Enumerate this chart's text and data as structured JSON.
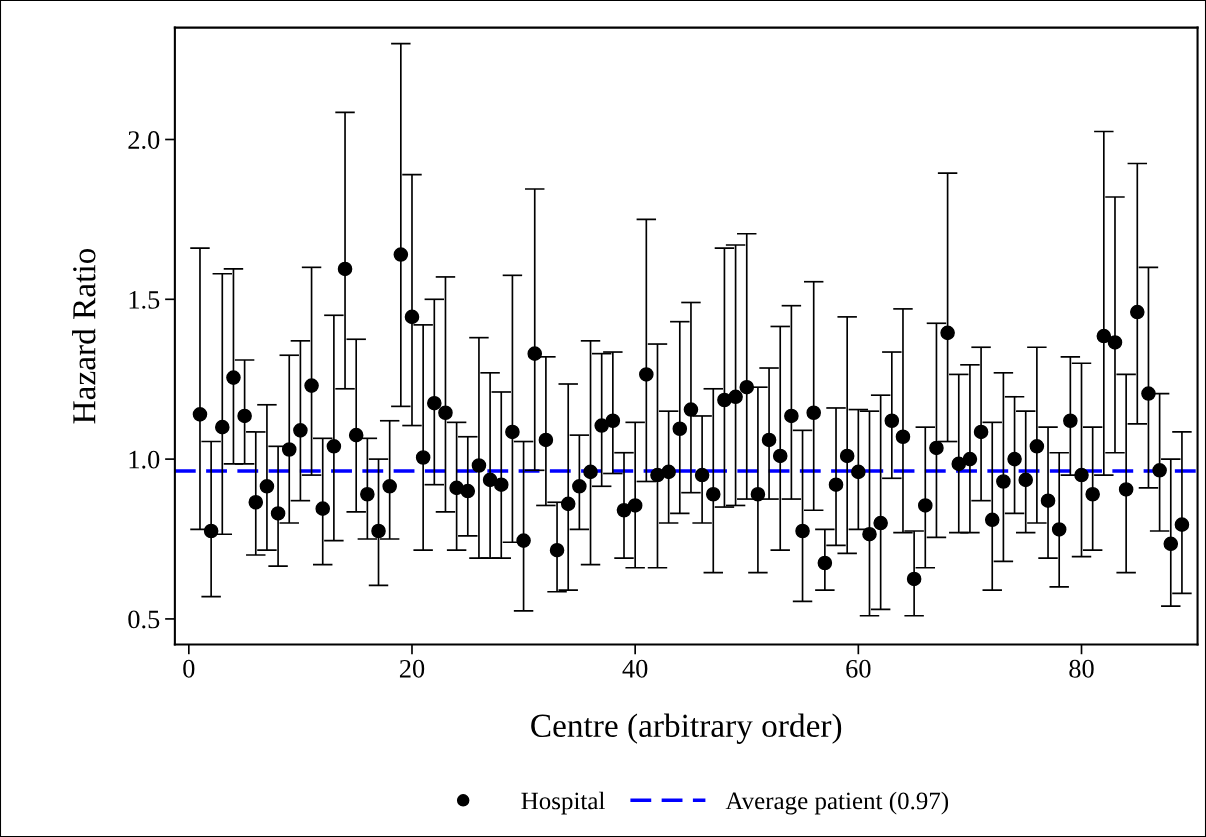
{
  "chart_data": {
    "type": "scatter",
    "xlabel": "Centre (arbitrary order)",
    "ylabel": "Hazard Ratio",
    "xlim": [
      -1.25,
      90.4
    ],
    "xticks": [
      0,
      20,
      40,
      60,
      80
    ],
    "ylim": [
      0.42,
      2.35
    ],
    "yticks": [
      {
        "value": 0.5,
        "label": "0.5"
      },
      {
        "value": 1.0,
        "label": "1.0"
      },
      {
        "value": 1.5,
        "label": "1.5"
      },
      {
        "value": 2.0,
        "label": "2.0"
      }
    ],
    "x": [
      1,
      2,
      3,
      4,
      5,
      6,
      7,
      8,
      9,
      10,
      11,
      12,
      13,
      14,
      15,
      16,
      17,
      18,
      19,
      20,
      21,
      22,
      23,
      24,
      25,
      26,
      27,
      28,
      29,
      30,
      31,
      32,
      33,
      34,
      35,
      36,
      37,
      38,
      39,
      40,
      41,
      42,
      43,
      44,
      45,
      46,
      47,
      48,
      49,
      50,
      51,
      52,
      53,
      54,
      55,
      56,
      57,
      58,
      59,
      60,
      61,
      62,
      63,
      64,
      65,
      66,
      67,
      68,
      69,
      70,
      71,
      72,
      73,
      74,
      75,
      76,
      77,
      78,
      79,
      80,
      81,
      82,
      83,
      84,
      85,
      86,
      87,
      88,
      89
    ],
    "series": [
      {
        "name": "Hospital",
        "color": "#000000",
        "values": [
          1.14,
          0.775,
          1.1,
          1.255,
          1.135,
          0.865,
          0.915,
          0.83,
          1.03,
          1.09,
          1.23,
          0.845,
          1.04,
          1.595,
          1.075,
          0.89,
          0.775,
          0.915,
          1.64,
          1.445,
          1.005,
          1.175,
          1.145,
          0.91,
          0.9,
          0.98,
          0.935,
          0.92,
          1.085,
          0.745,
          1.33,
          1.06,
          0.715,
          0.86,
          0.915,
          0.96,
          1.105,
          1.12,
          0.84,
          0.855,
          1.265,
          0.95,
          0.96,
          1.095,
          1.155,
          0.95,
          0.89,
          1.185,
          1.195,
          1.225,
          0.89,
          1.06,
          1.01,
          1.135,
          0.775,
          1.145,
          0.675,
          0.92,
          1.01,
          0.96,
          0.765,
          0.8,
          1.12,
          1.07,
          0.625,
          0.855,
          1.035,
          1.395,
          0.985,
          1.0,
          1.085,
          0.81,
          0.93,
          1.0,
          0.935,
          1.04,
          0.87,
          0.78,
          1.12,
          0.95,
          0.89,
          1.385,
          1.365,
          0.905,
          1.46,
          1.205,
          0.965,
          0.735,
          0.795
        ],
        "errors": [
          [
            0.78,
            1.66
          ],
          [
            0.57,
            1.055
          ],
          [
            0.765,
            1.58
          ],
          [
            0.985,
            1.595
          ],
          [
            0.985,
            1.31
          ],
          [
            0.7,
            1.085
          ],
          [
            0.715,
            1.17
          ],
          [
            0.665,
            1.04
          ],
          [
            0.8,
            1.325
          ],
          [
            0.87,
            1.37
          ],
          [
            0.95,
            1.6
          ],
          [
            0.67,
            1.065
          ],
          [
            0.745,
            1.45
          ],
          [
            1.22,
            2.085
          ],
          [
            0.835,
            1.375
          ],
          [
            0.75,
            1.065
          ],
          [
            0.605,
            1.0
          ],
          [
            0.75,
            1.12
          ],
          [
            1.165,
            2.3
          ],
          [
            1.105,
            1.89
          ],
          [
            0.715,
            1.42
          ],
          [
            0.92,
            1.5
          ],
          [
            0.835,
            1.57
          ],
          [
            0.715,
            1.115
          ],
          [
            0.76,
            1.07
          ],
          [
            0.69,
            1.38
          ],
          [
            0.69,
            1.27
          ],
          [
            0.69,
            1.21
          ],
          [
            0.74,
            1.575
          ],
          [
            0.525,
            1.055
          ],
          [
            0.965,
            1.845
          ],
          [
            0.855,
            1.32
          ],
          [
            0.585,
            0.865
          ],
          [
            0.59,
            1.235
          ],
          [
            0.78,
            1.075
          ],
          [
            0.67,
            1.37
          ],
          [
            0.915,
            1.33
          ],
          [
            0.955,
            1.335
          ],
          [
            0.69,
            1.02
          ],
          [
            0.66,
            1.115
          ],
          [
            0.93,
            1.75
          ],
          [
            0.66,
            1.36
          ],
          [
            0.8,
            1.15
          ],
          [
            0.83,
            1.43
          ],
          [
            0.895,
            1.49
          ],
          [
            0.8,
            1.135
          ],
          [
            0.645,
            1.22
          ],
          [
            0.85,
            1.66
          ],
          [
            0.855,
            1.67
          ],
          [
            0.875,
            1.705
          ],
          [
            0.645,
            1.225
          ],
          [
            0.875,
            1.285
          ],
          [
            0.715,
            1.415
          ],
          [
            0.875,
            1.48
          ],
          [
            0.555,
            1.09
          ],
          [
            0.84,
            1.555
          ],
          [
            0.59,
            0.78
          ],
          [
            0.73,
            1.16
          ],
          [
            0.705,
            1.445
          ],
          [
            0.78,
            1.155
          ],
          [
            0.51,
            1.15
          ],
          [
            0.53,
            1.2
          ],
          [
            0.94,
            1.335
          ],
          [
            0.77,
            1.47
          ],
          [
            0.51,
            0.775
          ],
          [
            0.66,
            1.1
          ],
          [
            0.755,
            1.425
          ],
          [
            1.055,
            1.895
          ],
          [
            0.77,
            1.265
          ],
          [
            0.77,
            1.295
          ],
          [
            0.87,
            1.35
          ],
          [
            0.59,
            1.115
          ],
          [
            0.68,
            1.27
          ],
          [
            0.83,
            1.195
          ],
          [
            0.77,
            1.15
          ],
          [
            0.8,
            1.35
          ],
          [
            0.69,
            1.1
          ],
          [
            0.6,
            1.02
          ],
          [
            0.95,
            1.32
          ],
          [
            0.695,
            1.3
          ],
          [
            0.715,
            1.1
          ],
          [
            0.95,
            2.025
          ],
          [
            1.02,
            1.82
          ],
          [
            0.645,
            1.265
          ],
          [
            1.11,
            1.925
          ],
          [
            0.91,
            1.6
          ],
          [
            0.775,
            1.205
          ],
          [
            0.54,
            1.0
          ],
          [
            0.58,
            1.085
          ]
        ]
      }
    ],
    "ref_lines": [
      {
        "axis": "y",
        "value": 0.963,
        "label": "Average patient (0.97)",
        "color": "#0000ff",
        "line_style": "dashed"
      }
    ],
    "marker": "circle",
    "grid": false,
    "legend": "bottom"
  }
}
